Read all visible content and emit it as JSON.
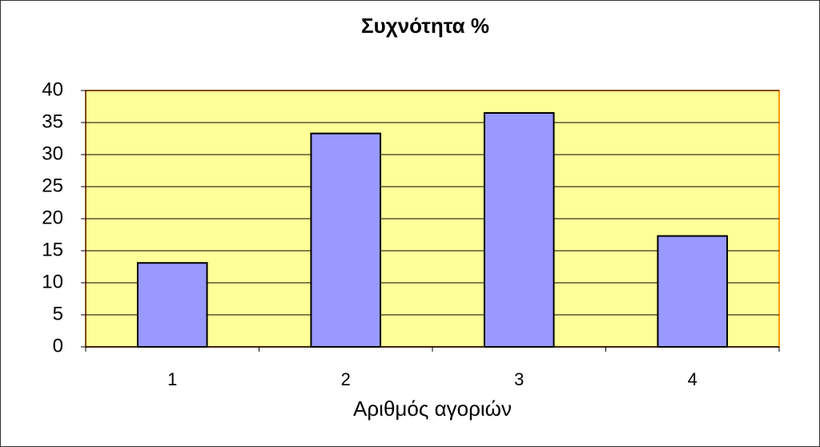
{
  "chart_data": {
    "type": "bar",
    "title": "Συχνότητα %",
    "x_label": "Αριθμός αγοριών",
    "categories": [
      "1",
      "2",
      "3",
      "4"
    ],
    "values": [
      13.1,
      33.3,
      36.5,
      17.3
    ],
    "color": "#9999ff",
    "ylim": [
      0,
      40
    ],
    "yticks": [
      0,
      5,
      10,
      15,
      20,
      25,
      30,
      35,
      40
    ],
    "grid": true,
    "plot_background": "#ffff99"
  }
}
